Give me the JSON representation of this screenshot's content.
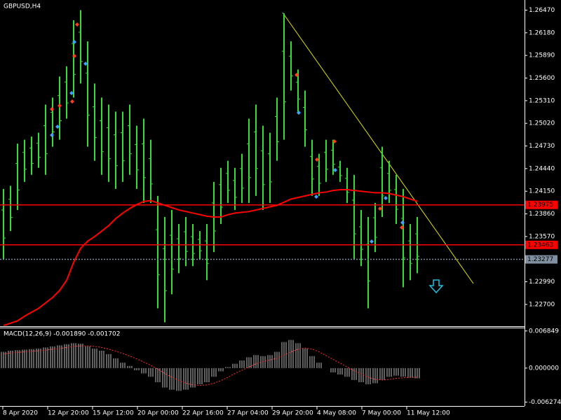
{
  "chart_data": [
    {
      "type": "ohlc",
      "title": "GBPUSD,H4",
      "color": "#33dd33",
      "high": [
        1.2418,
        1.2422,
        1.2476,
        1.2481,
        1.2485,
        1.249,
        1.2526,
        1.2535,
        1.2562,
        1.2575,
        1.2634,
        1.2647,
        1.2607,
        1.2553,
        1.2535,
        1.2526,
        1.2517,
        1.2517,
        1.2526,
        1.2499,
        1.2508,
        1.2481,
        1.2409,
        1.2382,
        1.2391,
        1.2373,
        1.2382,
        1.2373,
        1.2364,
        1.2373,
        1.2427,
        1.2445,
        1.2454,
        1.2445,
        1.2463,
        1.2508,
        1.2526,
        1.2499,
        1.249,
        1.2535,
        1.2643,
        1.2607,
        1.2571,
        1.2544,
        1.2481,
        1.2463,
        1.2481,
        1.2481,
        1.2454,
        1.2445,
        1.2436,
        1.2391,
        1.2382,
        1.24,
        1.2472,
        1.2454,
        1.2436,
        1.2418,
        1.2373,
        1.2382
      ],
      "low": [
        1.2328,
        1.2364,
        1.2391,
        1.2427,
        1.2436,
        1.2445,
        1.2436,
        1.2472,
        1.2481,
        1.2508,
        1.2535,
        1.2553,
        1.2472,
        1.2454,
        1.2436,
        1.2427,
        1.2418,
        1.2427,
        1.2436,
        1.2418,
        1.24,
        1.24,
        1.2265,
        1.2247,
        1.2283,
        1.231,
        1.2319,
        1.2319,
        1.2328,
        1.2301,
        1.2337,
        1.2373,
        1.24,
        1.2391,
        1.24,
        1.24,
        1.2409,
        1.2391,
        1.24,
        1.2454,
        1.2481,
        1.2544,
        1.2517,
        1.2472,
        1.2409,
        1.2409,
        1.2427,
        1.2436,
        1.2427,
        1.24,
        1.2328,
        1.2319,
        1.2265,
        1.2337,
        1.2382,
        1.24,
        1.2373,
        1.2292,
        1.2301,
        1.231
      ],
      "ma": {
        "color": "#ff0000",
        "values": [
          1.2243,
          1.2246,
          1.2249,
          1.2255,
          1.226,
          1.2265,
          1.2272,
          1.2279,
          1.2288,
          1.2301,
          1.2324,
          1.2342,
          1.2351,
          1.2357,
          1.2364,
          1.2371,
          1.238,
          1.2387,
          1.2393,
          1.2398,
          1.2402,
          1.2403,
          1.24,
          1.2397,
          1.2394,
          1.2391,
          1.2389,
          1.2387,
          1.2385,
          1.2383,
          1.2382,
          1.2382,
          1.2385,
          1.2387,
          1.2388,
          1.2389,
          1.2391,
          1.2393,
          1.2395,
          1.2397,
          1.2401,
          1.2405,
          1.2407,
          1.2409,
          1.2411,
          1.2413,
          1.2414,
          1.2416,
          1.2417,
          1.2417,
          1.2416,
          1.2415,
          1.2414,
          1.2413,
          1.2413,
          1.2412,
          1.241,
          1.2408,
          1.2405,
          1.2402
        ]
      },
      "levels": [
        {
          "value": 1.23975,
          "color": "#ff0000"
        },
        {
          "value": 1.23463,
          "color": "#ff0000"
        },
        {
          "value": 1.23277,
          "color": "#8090a0"
        }
      ],
      "ylim": [
        1.2243,
        1.266
      ],
      "yticks": [
        {
          "value": 1.2647,
          "label": "1.26470"
        },
        {
          "value": 1.2618,
          "label": "1.26180"
        },
        {
          "value": 1.2589,
          "label": "1.25890"
        },
        {
          "value": 1.256,
          "label": "1.25600"
        },
        {
          "value": 1.2531,
          "label": "1.25310"
        },
        {
          "value": 1.2502,
          "label": "1.25020"
        },
        {
          "value": 1.2473,
          "label": "1.24730"
        },
        {
          "value": 1.2444,
          "label": "1.24440"
        },
        {
          "value": 1.2415,
          "label": "1.24150"
        },
        {
          "value": 1.2386,
          "label": "1.23860"
        },
        {
          "value": 1.2357,
          "label": "1.23570"
        },
        {
          "value": 1.2299,
          "label": "1.22990"
        },
        {
          "value": 1.227,
          "label": "1.22700"
        }
      ],
      "x_labels": [
        "8 Apr 2020",
        "12 Apr 20:00",
        "15 Apr 12:00",
        "20 Apr 00:00",
        "22 Apr 16:00",
        "27 Apr 04:00",
        "29 Apr 20:00",
        "4 May 08:00",
        "7 May 00:00",
        "11 May 12:00"
      ]
    },
    {
      "type": "macd",
      "title": "MACD(12,26,9) -0.001890 -0.001702",
      "color": "#c0c0c0",
      "values": [
        0.003,
        0.0032,
        0.0033,
        0.0034,
        0.0035,
        0.0036,
        0.0038,
        0.004,
        0.0042,
        0.0044,
        0.0046,
        0.0045,
        0.004,
        0.0036,
        0.0032,
        0.0026,
        0.0018,
        0.001,
        0.0004,
        -0.0004,
        -0.001,
        -0.0016,
        -0.0026,
        -0.0036,
        -0.004,
        -0.0042,
        -0.004,
        -0.0036,
        -0.003,
        -0.0026,
        -0.0016,
        -0.0006,
        0.0002,
        0.0008,
        0.0014,
        0.002,
        0.0024,
        0.0022,
        0.0024,
        0.003,
        0.0048,
        0.0052,
        0.0046,
        0.0036,
        0.0022,
        0.001,
        0.0,
        -0.0008,
        -0.0012,
        -0.0016,
        -0.0022,
        -0.0026,
        -0.003,
        -0.0028,
        -0.0022,
        -0.0016,
        -0.0014,
        -0.0016,
        -0.0018,
        -0.0019
      ],
      "signal": {
        "color": "#ff3030",
        "values": [
          0.0026,
          0.0028,
          0.0029,
          0.003,
          0.0031,
          0.0032,
          0.0033,
          0.0035,
          0.0036,
          0.0038,
          0.004,
          0.0041,
          0.0041,
          0.004,
          0.0038,
          0.0035,
          0.0031,
          0.0027,
          0.0022,
          0.0017,
          0.0011,
          0.0005,
          -0.0002,
          -0.001,
          -0.0017,
          -0.0023,
          -0.0028,
          -0.0031,
          -0.0032,
          -0.0031,
          -0.0028,
          -0.0023,
          -0.0017,
          -0.001,
          -0.0004,
          0.0002,
          0.0008,
          0.0012,
          0.0015,
          0.0018,
          0.0024,
          0.003,
          0.0035,
          0.0037,
          0.0035,
          0.003,
          0.0023,
          0.0016,
          0.0009,
          0.0002,
          -0.0005,
          -0.0011,
          -0.0017,
          -0.0021,
          -0.0022,
          -0.0021,
          -0.0019,
          -0.0018,
          -0.0017,
          -0.0017
        ]
      },
      "ylim": [
        -0.007,
        0.0076
      ],
      "yticks": [
        0.006849,
        {
          "value": 0,
          "label": "0.000000"
        },
        -0.006274
      ]
    }
  ]
}
